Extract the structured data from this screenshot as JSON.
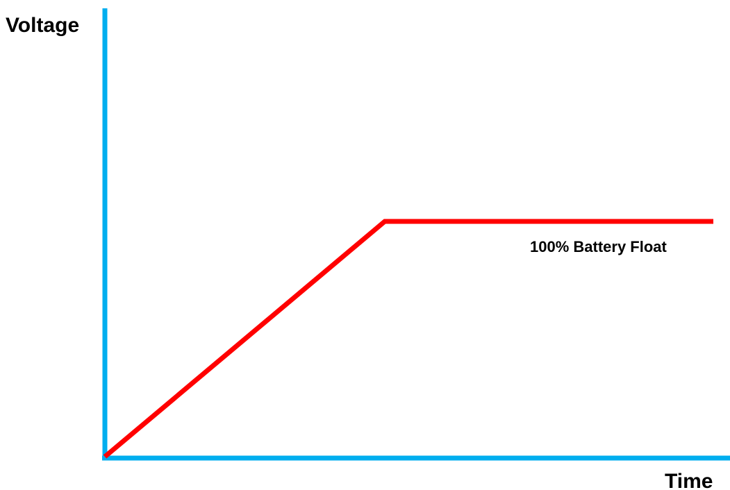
{
  "chart_data": {
    "type": "line",
    "title": "",
    "xlabel": "Time",
    "ylabel": "Voltage",
    "series": [
      {
        "x": [
          0,
          46,
          100
        ],
        "y": [
          0,
          100,
          100
        ],
        "color": "#ff0000"
      }
    ],
    "xlim": [
      0,
      100
    ],
    "ylim": [
      0,
      100
    ],
    "ticks": "none",
    "grid": false,
    "annotations": [
      {
        "text": "100% Battery Float"
      }
    ],
    "axis_color": "#00aeef",
    "line_color": "#ff0000"
  }
}
